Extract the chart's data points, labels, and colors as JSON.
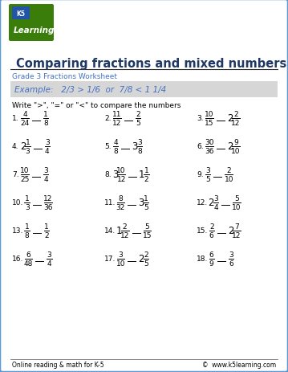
{
  "title": "Comparing fractions and mixed numbers",
  "subtitle": "Grade 3 Fractions Worksheet",
  "example_text": "Example:   2/3 > 1/6  or  7/8 < 1 1/4",
  "instruction": "Write \">\", \"=\" or \"<\" to compare the numbers",
  "bg_color": "#ffffff",
  "border_color": "#5b9bd5",
  "title_color": "#1f3864",
  "subtitle_color": "#4472c4",
  "example_bg": "#d6d6d6",
  "text_color": "#000000",
  "footer_left": "Online reading & math for K-5",
  "footer_right": "©  www.k5learning.com",
  "problems": [
    {
      "num": "1.",
      "l_whole": "",
      "l_num": "4",
      "l_den": "24",
      "r_whole": "",
      "r_num": "1",
      "r_den": "8"
    },
    {
      "num": "2.",
      "l_whole": "",
      "l_num": "11",
      "l_den": "12",
      "r_whole": "",
      "r_num": "2",
      "r_den": "5"
    },
    {
      "num": "3.",
      "l_whole": "",
      "l_num": "10",
      "l_den": "15",
      "r_whole": "2",
      "r_num": "2",
      "r_den": "12"
    },
    {
      "num": "4.",
      "l_whole": "2",
      "l_num": "1",
      "l_den": "3",
      "r_whole": "",
      "r_num": "3",
      "r_den": "4"
    },
    {
      "num": "5.",
      "l_whole": "",
      "l_num": "4",
      "l_den": "8",
      "r_whole": "3",
      "r_num": "3",
      "r_den": "8"
    },
    {
      "num": "6.",
      "l_whole": "",
      "l_num": "30",
      "l_den": "36",
      "r_whole": "2",
      "r_num": "9",
      "r_den": "10"
    },
    {
      "num": "7.",
      "l_whole": "",
      "l_num": "10",
      "l_den": "25",
      "r_whole": "",
      "r_num": "3",
      "r_den": "4"
    },
    {
      "num": "8.",
      "l_whole": "3",
      "l_num": "10",
      "l_den": "12",
      "r_whole": "1",
      "r_num": "1",
      "r_den": "2"
    },
    {
      "num": "9.",
      "l_whole": "",
      "l_num": "3",
      "l_den": "5",
      "r_whole": "",
      "r_num": "2",
      "r_den": "10"
    },
    {
      "num": "10.",
      "l_whole": "",
      "l_num": "1",
      "l_den": "3",
      "r_whole": "",
      "r_num": "12",
      "r_den": "36"
    },
    {
      "num": "11.",
      "l_whole": "",
      "l_num": "8",
      "l_den": "32",
      "r_whole": "3",
      "r_num": "1",
      "r_den": "5"
    },
    {
      "num": "12.",
      "l_whole": "2",
      "l_num": "3",
      "l_den": "4",
      "r_whole": "",
      "r_num": "5",
      "r_den": "10"
    },
    {
      "num": "13.",
      "l_whole": "",
      "l_num": "1",
      "l_den": "8",
      "r_whole": "",
      "r_num": "1",
      "r_den": "2"
    },
    {
      "num": "14.",
      "l_whole": "1",
      "l_num": "2",
      "l_den": "12",
      "r_whole": "",
      "r_num": "5",
      "r_den": "15"
    },
    {
      "num": "15.",
      "l_whole": "",
      "l_num": "2",
      "l_den": "6",
      "r_whole": "2",
      "r_num": "7",
      "r_den": "12"
    },
    {
      "num": "16.",
      "l_whole": "",
      "l_num": "6",
      "l_den": "48",
      "r_whole": "",
      "r_num": "3",
      "r_den": "4"
    },
    {
      "num": "17.",
      "l_whole": "",
      "l_num": "3",
      "l_den": "10",
      "r_whole": "2",
      "r_num": "2",
      "r_den": "5"
    },
    {
      "num": "18.",
      "l_whole": "",
      "l_num": "6",
      "l_den": "9",
      "r_whole": "",
      "r_num": "3",
      "r_den": "6"
    }
  ]
}
